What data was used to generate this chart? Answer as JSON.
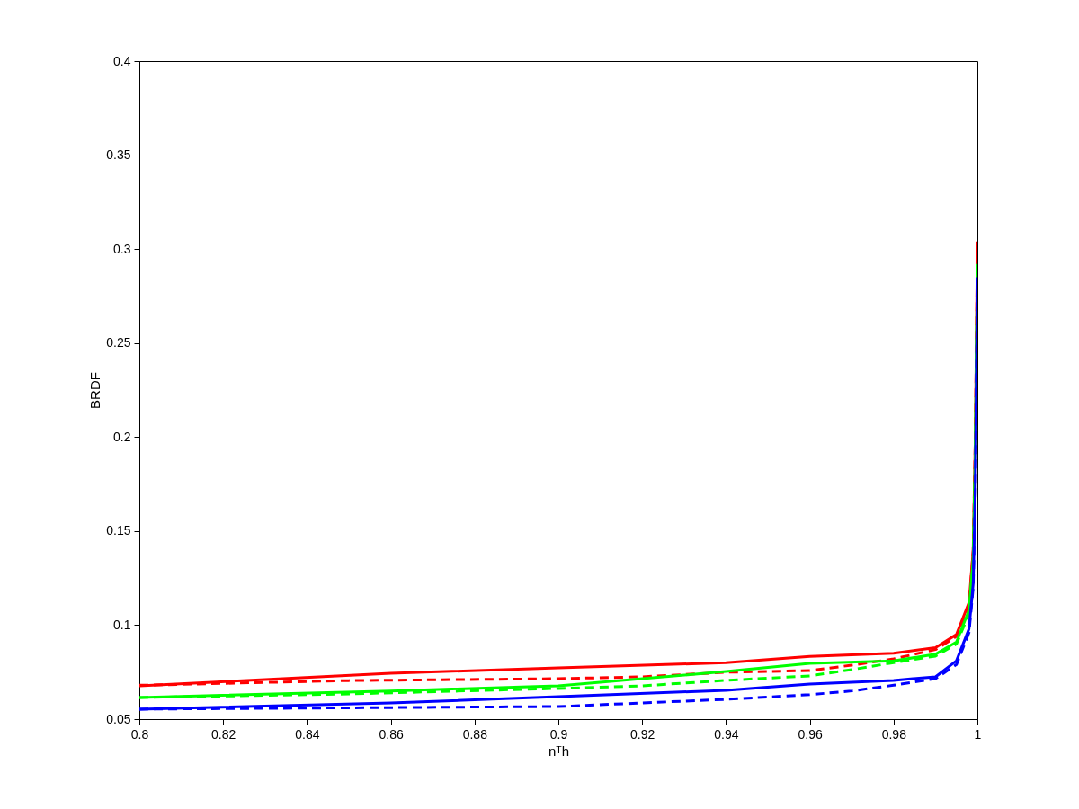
{
  "chart_data": {
    "type": "line",
    "xlabel": "nᵀh",
    "ylabel": "BRDF",
    "xlim": [
      0.8,
      1
    ],
    "ylim": [
      0.05,
      0.4
    ],
    "xticks": [
      0.8,
      0.82,
      0.84,
      0.86,
      0.88,
      0.9,
      0.92,
      0.94,
      0.96,
      0.98,
      1
    ],
    "yticks": [
      0.05,
      0.1,
      0.15,
      0.2,
      0.25,
      0.3,
      0.35,
      0.4
    ],
    "grid": false,
    "series": [
      {
        "color": "#ff0000",
        "line_style": "solid",
        "x": [
          0.8,
          0.83,
          0.86,
          0.9,
          0.94,
          0.96,
          0.98,
          0.99,
          0.995,
          0.998,
          0.999,
          0.9995,
          1.0
        ],
        "values": [
          0.0677,
          0.071,
          0.0744,
          0.0772,
          0.08,
          0.0834,
          0.085,
          0.088,
          0.095,
          0.112,
          0.14,
          0.2,
          0.304
        ]
      },
      {
        "color": "#ff0000",
        "line_style": "dashed",
        "x": [
          0.8,
          0.85,
          0.9,
          0.92,
          0.94,
          0.96,
          0.97,
          0.98,
          0.99,
          0.995,
          0.998,
          0.999,
          0.9995,
          1.0
        ],
        "values": [
          0.068,
          0.0705,
          0.0715,
          0.0725,
          0.0749,
          0.0758,
          0.0787,
          0.082,
          0.087,
          0.094,
          0.11,
          0.14,
          0.2,
          0.3
        ]
      },
      {
        "color": "#00ff00",
        "line_style": "solid",
        "x": [
          0.8,
          0.86,
          0.9,
          0.94,
          0.96,
          0.98,
          0.99,
          0.995,
          0.998,
          0.999,
          0.9995,
          1.0
        ],
        "values": [
          0.0615,
          0.065,
          0.0677,
          0.0753,
          0.0797,
          0.081,
          0.0845,
          0.091,
          0.108,
          0.135,
          0.19,
          0.292
        ]
      },
      {
        "color": "#00ff00",
        "line_style": "dashed",
        "x": [
          0.8,
          0.85,
          0.9,
          0.92,
          0.94,
          0.96,
          0.97,
          0.98,
          0.99,
          0.995,
          0.998,
          0.999,
          0.9995,
          1.0
        ],
        "values": [
          0.0615,
          0.0634,
          0.0663,
          0.0677,
          0.0706,
          0.073,
          0.0763,
          0.08,
          0.0835,
          0.09,
          0.106,
          0.135,
          0.19,
          0.29
        ]
      },
      {
        "color": "#0000ff",
        "line_style": "solid",
        "x": [
          0.8,
          0.86,
          0.9,
          0.94,
          0.96,
          0.98,
          0.99,
          0.995,
          0.998,
          0.999,
          0.9995,
          1.0
        ],
        "values": [
          0.0553,
          0.0586,
          0.062,
          0.0653,
          0.0687,
          0.0706,
          0.0725,
          0.081,
          0.098,
          0.122,
          0.17,
          0.285
        ]
      },
      {
        "color": "#0000ff",
        "line_style": "dashed",
        "x": [
          0.8,
          0.85,
          0.9,
          0.92,
          0.94,
          0.96,
          0.97,
          0.98,
          0.99,
          0.995,
          0.998,
          0.999,
          0.9995,
          1.0
        ],
        "values": [
          0.0553,
          0.056,
          0.0567,
          0.0586,
          0.0605,
          0.063,
          0.065,
          0.068,
          0.0715,
          0.079,
          0.096,
          0.12,
          0.17,
          0.28
        ]
      }
    ]
  }
}
